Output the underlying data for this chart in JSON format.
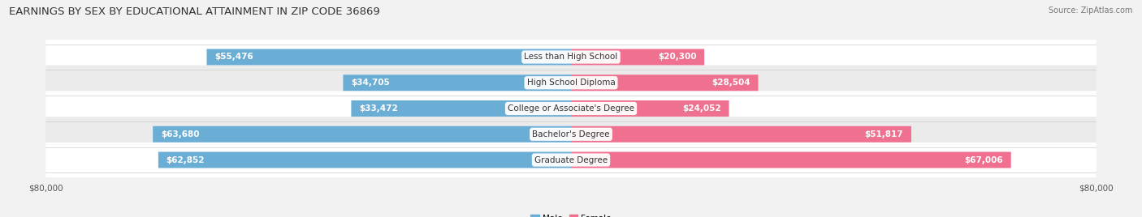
{
  "title": "EARNINGS BY SEX BY EDUCATIONAL ATTAINMENT IN ZIP CODE 36869",
  "source": "Source: ZipAtlas.com",
  "categories": [
    "Less than High School",
    "High School Diploma",
    "College or Associate's Degree",
    "Bachelor's Degree",
    "Graduate Degree"
  ],
  "male_values": [
    55476,
    34705,
    33472,
    63680,
    62852
  ],
  "female_values": [
    20300,
    28504,
    24052,
    51817,
    67006
  ],
  "male_color": "#6aaed6",
  "female_color": "#f07090",
  "axis_max": 80000,
  "background_color": "#f2f2f2",
  "row_colors": [
    "#ffffff",
    "#ebebeb"
  ],
  "title_fontsize": 9.5,
  "source_fontsize": 7,
  "label_fontsize": 7.5,
  "category_fontsize": 7.5
}
